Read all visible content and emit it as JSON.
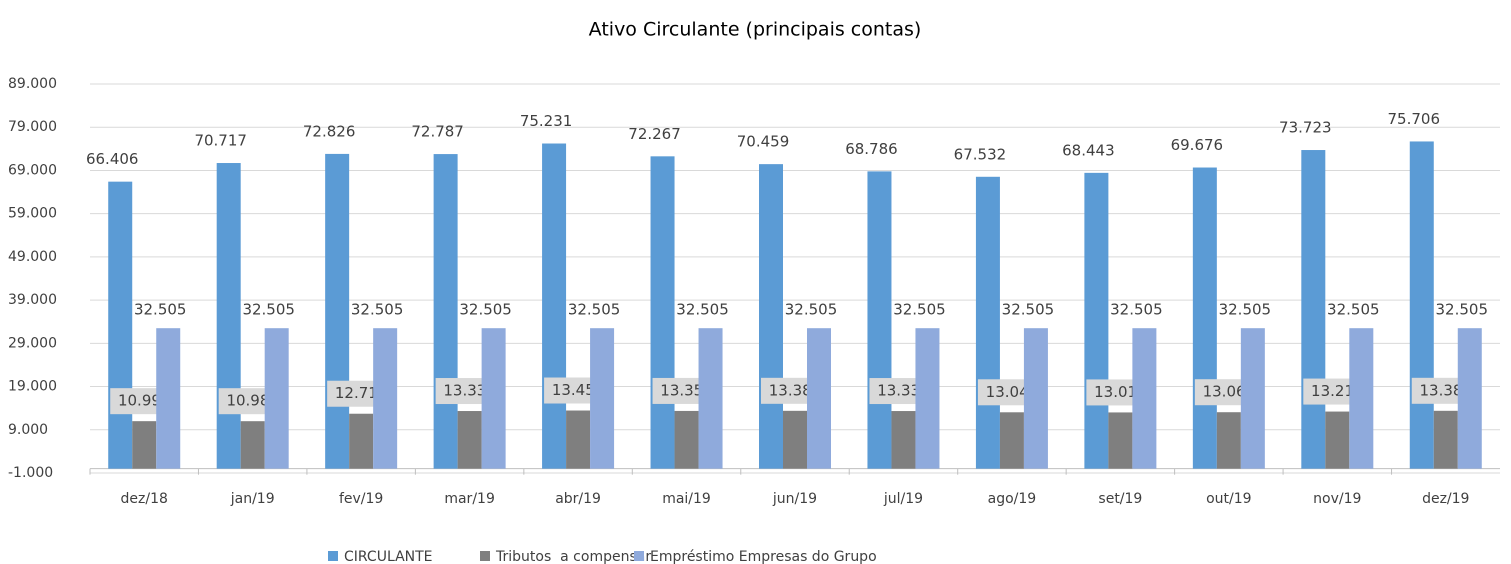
{
  "chart_data": {
    "type": "bar",
    "title": "Ativo Circulante (principais contas)",
    "categories": [
      "dez/18",
      "jan/19",
      "fev/19",
      "mar/19",
      "abr/19",
      "mai/19",
      "jun/19",
      "jul/19",
      "ago/19",
      "set/19",
      "out/19",
      "nov/19",
      "dez/19"
    ],
    "series": [
      {
        "name": "CIRCULANTE",
        "color": "#5b9bd5",
        "values": [
          66406,
          70717,
          72826,
          72787,
          75231,
          72267,
          70459,
          68786,
          67532,
          68443,
          69676,
          73723,
          75706
        ],
        "value_labels": [
          "66.406",
          "70.717",
          "72.826",
          "72.787",
          "75.231",
          "72.267",
          "70.459",
          "68.786",
          "67.532",
          "68.443",
          "69.676",
          "73.723",
          "75.706"
        ]
      },
      {
        "name": "Tributos  a compensar",
        "color": "#7f7f7f",
        "values": [
          10993,
          10987,
          12712,
          13339,
          13457,
          13359,
          13385,
          13335,
          13046,
          13014,
          13064,
          13216,
          13389
        ],
        "value_labels": [
          "10.993",
          "10.987",
          "12.712",
          "13.339",
          "13.457",
          "13.359",
          "13.385",
          "13.335",
          "13.046",
          "13.014",
          "13.064",
          "13.216",
          "13.389"
        ]
      },
      {
        "name": "Empréstimo Empresas do Grupo",
        "color": "#8faadc",
        "values": [
          32505,
          32505,
          32505,
          32505,
          32505,
          32505,
          32505,
          32505,
          32505,
          32505,
          32505,
          32505,
          32505
        ],
        "value_labels": [
          "32.505",
          "32.505",
          "32.505",
          "32.505",
          "32.505",
          "32.505",
          "32.505",
          "32.505",
          "32.505",
          "32.505",
          "32.505",
          "32.505",
          "32.505"
        ]
      }
    ],
    "ylim": [
      -1000,
      89000
    ],
    "yticks": [
      {
        "value": -1000,
        "label": "-1.000"
      },
      {
        "value": 9000,
        "label": "9.000"
      },
      {
        "value": 19000,
        "label": "19.000"
      },
      {
        "value": 29000,
        "label": "29.000"
      },
      {
        "value": 39000,
        "label": "39.000"
      },
      {
        "value": 49000,
        "label": "49.000"
      },
      {
        "value": 59000,
        "label": "59.000"
      },
      {
        "value": 69000,
        "label": "69.000"
      },
      {
        "value": 79000,
        "label": "79.000"
      },
      {
        "value": 89000,
        "label": "89.000"
      }
    ],
    "grid": true,
    "legend": "bottom"
  }
}
